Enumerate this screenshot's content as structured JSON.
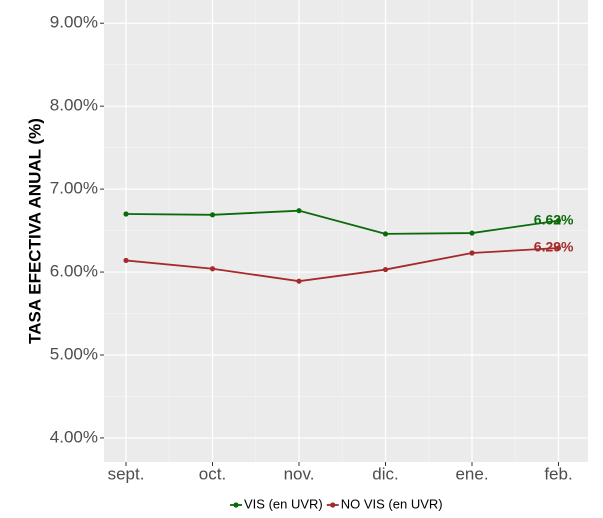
{
  "chart_data": {
    "type": "line",
    "y_label": "TASA EFECTIVA ANUAL (%)",
    "categories": [
      "sept.",
      "oct.",
      "nov.",
      "dic.",
      "ene.",
      "feb."
    ],
    "series": [
      {
        "name": "VIS (en UVR)",
        "color": "#0b6b0b",
        "values": [
          6.7,
          6.69,
          6.74,
          6.46,
          6.47,
          6.62
        ],
        "value_labels": [
          null,
          null,
          null,
          null,
          null,
          "6.62%"
        ]
      },
      {
        "name": "NO VIS (en UVR)",
        "color": "#a52a2a",
        "values": [
          6.14,
          6.04,
          5.89,
          6.03,
          6.23,
          6.29
        ],
        "value_labels": [
          null,
          null,
          null,
          null,
          null,
          "6.29%"
        ]
      }
    ],
    "ylim": [
      3.71,
      9.28
    ],
    "yticks": [
      {
        "value": 4,
        "label": "4.00%"
      },
      {
        "value": 5,
        "label": "5.00%"
      },
      {
        "value": 6,
        "label": "6.00%"
      },
      {
        "value": 7,
        "label": "7.00%"
      },
      {
        "value": 8,
        "label": "8.00%"
      },
      {
        "value": 9,
        "label": "9.00%"
      }
    ],
    "grid": true,
    "legend": "bottom"
  }
}
